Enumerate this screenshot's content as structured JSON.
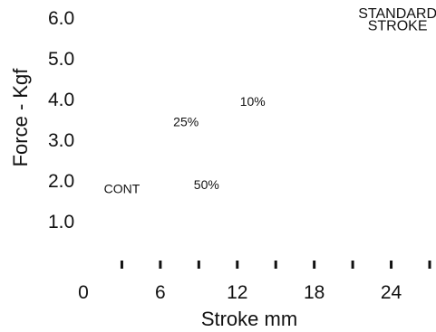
{
  "chart_data": {
    "type": "line",
    "title": "",
    "xlabel": "Stroke mm",
    "ylabel": "Force - Kgf",
    "xlim": [
      0,
      27
    ],
    "ylim": [
      1.0,
      6.0
    ],
    "x_ticks": [
      0,
      3,
      6,
      9,
      12,
      15,
      18,
      21,
      24,
      27
    ],
    "x_tick_labels": [
      "0",
      "",
      "6",
      "",
      "12",
      "",
      "18",
      "",
      "24",
      ""
    ],
    "y_ticks": [
      {
        "value": 6.0,
        "label": "6.0"
      },
      {
        "value": 5.0,
        "label": "5.0"
      },
      {
        "value": 4.0,
        "label": "4.0"
      },
      {
        "value": 3.0,
        "label": "3.0"
      },
      {
        "value": 2.0,
        "label": "2.0"
      },
      {
        "value": 1.0,
        "label": "1.0"
      }
    ],
    "grid": false,
    "annotations": [
      {
        "text": "STANDARD",
        "x": 24.5,
        "y": 6.0,
        "style": "big"
      },
      {
        "text": "STROKE",
        "x": 24.5,
        "y": 5.7,
        "style": "big"
      },
      {
        "text": "10%",
        "x": 13.2,
        "y": 3.85,
        "style": "normal"
      },
      {
        "text": "25%",
        "x": 8.0,
        "y": 3.35,
        "style": "normal"
      },
      {
        "text": "50%",
        "x": 9.6,
        "y": 1.8,
        "style": "normal"
      },
      {
        "text": "CONT",
        "x": 3.0,
        "y": 1.7,
        "style": "normal"
      }
    ],
    "series": []
  }
}
